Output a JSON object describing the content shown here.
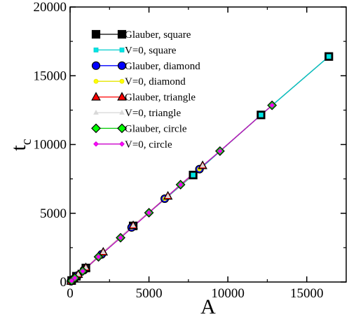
{
  "chart_data": {
    "type": "scatter",
    "title": "",
    "xlabel": "A",
    "ylabel": "t",
    "ylabel_subscript": "c",
    "xlim": [
      0,
      17500
    ],
    "ylim": [
      0,
      20000
    ],
    "x_ticks": [
      0,
      5000,
      10000,
      15000
    ],
    "y_ticks": [
      0,
      5000,
      10000,
      15000,
      20000
    ],
    "x_tick_labels": [
      "0",
      "5000",
      "10000",
      "15000"
    ],
    "y_tick_labels": [
      "0",
      "5000",
      "10000",
      "15000",
      "20000"
    ],
    "grid": false,
    "legend_position": "top-left",
    "series": [
      {
        "name": "Glauber, square",
        "marker": "square",
        "color": "#000000",
        "line_color": "#000000",
        "marker_size": "large",
        "points": [
          [
            100,
            110
          ],
          [
            400,
            420
          ],
          [
            1000,
            1020
          ],
          [
            4000,
            4080
          ],
          [
            7800,
            7780
          ],
          [
            12100,
            12150
          ],
          [
            16400,
            16400
          ]
        ]
      },
      {
        "name": "V=0, square",
        "marker": "square",
        "color": "#00e5e5",
        "line_color": "#00cccc",
        "marker_size": "small",
        "points": [
          [
            100,
            110
          ],
          [
            400,
            420
          ],
          [
            1000,
            1020
          ],
          [
            4000,
            4080
          ],
          [
            7800,
            7780
          ],
          [
            12100,
            12150
          ],
          [
            16400,
            16400
          ]
        ]
      },
      {
        "name": "Glauber, diamond",
        "marker": "circle",
        "color": "#0000ff",
        "line_color": "#0000ff",
        "marker_size": "large",
        "points": [
          [
            60,
            60
          ],
          [
            200,
            200
          ],
          [
            480,
            470
          ],
          [
            880,
            870
          ],
          [
            2000,
            2010
          ],
          [
            3900,
            3970
          ],
          [
            6000,
            6060
          ],
          [
            8200,
            8210
          ]
        ]
      },
      {
        "name": "V=0, diamond",
        "marker": "circle",
        "color": "#ffff00",
        "line_color": "#e5e500",
        "marker_size": "small",
        "points": [
          [
            60,
            60
          ],
          [
            200,
            200
          ],
          [
            480,
            470
          ],
          [
            880,
            870
          ],
          [
            2000,
            2010
          ],
          [
            3900,
            3970
          ],
          [
            6000,
            6060
          ],
          [
            8200,
            8210
          ]
        ]
      },
      {
        "name": "Glauber, triangle",
        "marker": "triangle",
        "color": "#ff0000",
        "line_color": "#ff0000",
        "marker_size": "large",
        "points": [
          [
            60,
            65
          ],
          [
            240,
            260
          ],
          [
            520,
            560
          ],
          [
            1000,
            1050
          ],
          [
            2100,
            2180
          ],
          [
            4000,
            4110
          ],
          [
            6200,
            6250
          ],
          [
            8400,
            8470
          ]
        ]
      },
      {
        "name": "V=0, triangle",
        "marker": "triangle",
        "color": "#d8d8d8",
        "line_color": "#d8d8d8",
        "marker_size": "small",
        "points": [
          [
            60,
            65
          ],
          [
            240,
            260
          ],
          [
            520,
            560
          ],
          [
            1000,
            1050
          ],
          [
            2100,
            2180
          ],
          [
            4000,
            4110
          ],
          [
            6200,
            6250
          ],
          [
            8400,
            8470
          ]
        ]
      },
      {
        "name": "Glauber, circle",
        "marker": "diamond",
        "color": "#00ff00",
        "line_color": "#00cc00",
        "marker_size": "large",
        "points": [
          [
            100,
            90
          ],
          [
            300,
            290
          ],
          [
            800,
            790
          ],
          [
            1800,
            1830
          ],
          [
            3200,
            3220
          ],
          [
            5000,
            5040
          ],
          [
            7000,
            7080
          ],
          [
            9500,
            9520
          ],
          [
            12800,
            12850
          ]
        ]
      },
      {
        "name": "V=0, circle",
        "marker": "diamond",
        "color": "#ff00ff",
        "line_color": "#cc00cc",
        "marker_size": "small",
        "points": [
          [
            100,
            90
          ],
          [
            300,
            290
          ],
          [
            800,
            790
          ],
          [
            1800,
            1830
          ],
          [
            3200,
            3220
          ],
          [
            5000,
            5040
          ],
          [
            7000,
            7080
          ],
          [
            9500,
            9520
          ],
          [
            12800,
            12850
          ]
        ]
      }
    ]
  }
}
